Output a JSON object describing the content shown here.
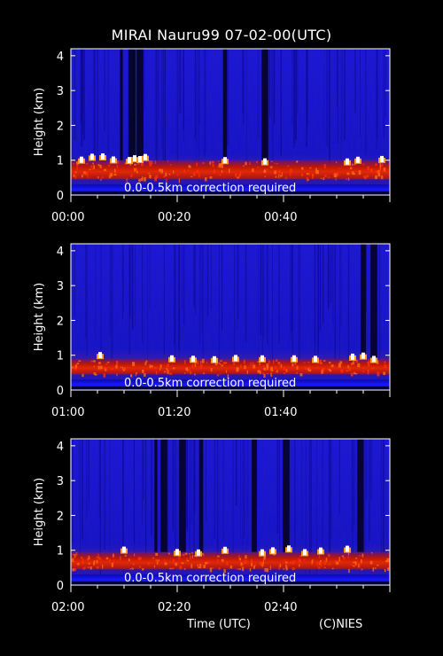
{
  "title": "MIRAI Nauru99 07-02-00(UTC)",
  "xlabel": "Time (UTC)",
  "credit": "(C)NIES",
  "colors": {
    "background": "#000000",
    "field": "#1410d8",
    "boundary_layer": "#c81400",
    "peak": "#ffffff"
  },
  "chart_data": [
    {
      "type": "heatmap",
      "ylabel": "Height (km)",
      "ylim": [
        0,
        4.2
      ],
      "yticks": [
        "0",
        "1",
        "2",
        "3",
        "4"
      ],
      "xlim_minutes": [
        0,
        60
      ],
      "xticks": [
        {
          "minute": 0,
          "label": "00:00"
        },
        {
          "minute": 20,
          "label": "00:20"
        },
        {
          "minute": 40,
          "label": "00:40"
        }
      ],
      "annotation": "0.0-0.5km correction required",
      "boundary_layer_top_km": 1.0,
      "precipitation_streaks_minutes": [
        9.5,
        11.5,
        13,
        29,
        36.5
      ],
      "peak_echo_minutes": [
        2,
        4,
        6,
        8,
        11,
        12,
        13,
        14,
        29,
        36.5,
        52,
        54,
        58.5
      ]
    },
    {
      "type": "heatmap",
      "ylabel": "Height (km)",
      "ylim": [
        0,
        4.2
      ],
      "yticks": [
        "0",
        "1",
        "2",
        "3",
        "4"
      ],
      "xlim_minutes": [
        0,
        60
      ],
      "xticks": [
        {
          "minute": 0,
          "label": "01:00"
        },
        {
          "minute": 20,
          "label": "01:20"
        },
        {
          "minute": 40,
          "label": "01:40"
        }
      ],
      "annotation": "0.0-0.5km correction required",
      "boundary_layer_top_km": 0.9,
      "precipitation_streaks_minutes": [
        55,
        57
      ],
      "peak_echo_minutes": [
        5.5,
        19,
        23,
        27,
        31,
        36,
        42,
        46,
        53,
        55,
        57
      ]
    },
    {
      "type": "heatmap",
      "ylabel": "Height (km)",
      "ylim": [
        0,
        4.2
      ],
      "yticks": [
        "0",
        "1",
        "2",
        "3",
        "4"
      ],
      "xlim_minutes": [
        0,
        60
      ],
      "xticks": [
        {
          "minute": 0,
          "label": "02:00"
        },
        {
          "minute": 20,
          "label": "02:20"
        },
        {
          "minute": 40,
          "label": "02:40"
        }
      ],
      "annotation": "0.0-0.5km correction required",
      "boundary_layer_top_km": 0.95,
      "precipitation_streaks_minutes": [
        16,
        17.5,
        21,
        24.5,
        34.5,
        40.5,
        54.5
      ],
      "peak_echo_minutes": [
        10,
        20,
        24,
        29,
        36,
        38,
        41,
        44,
        47,
        52
      ]
    }
  ]
}
